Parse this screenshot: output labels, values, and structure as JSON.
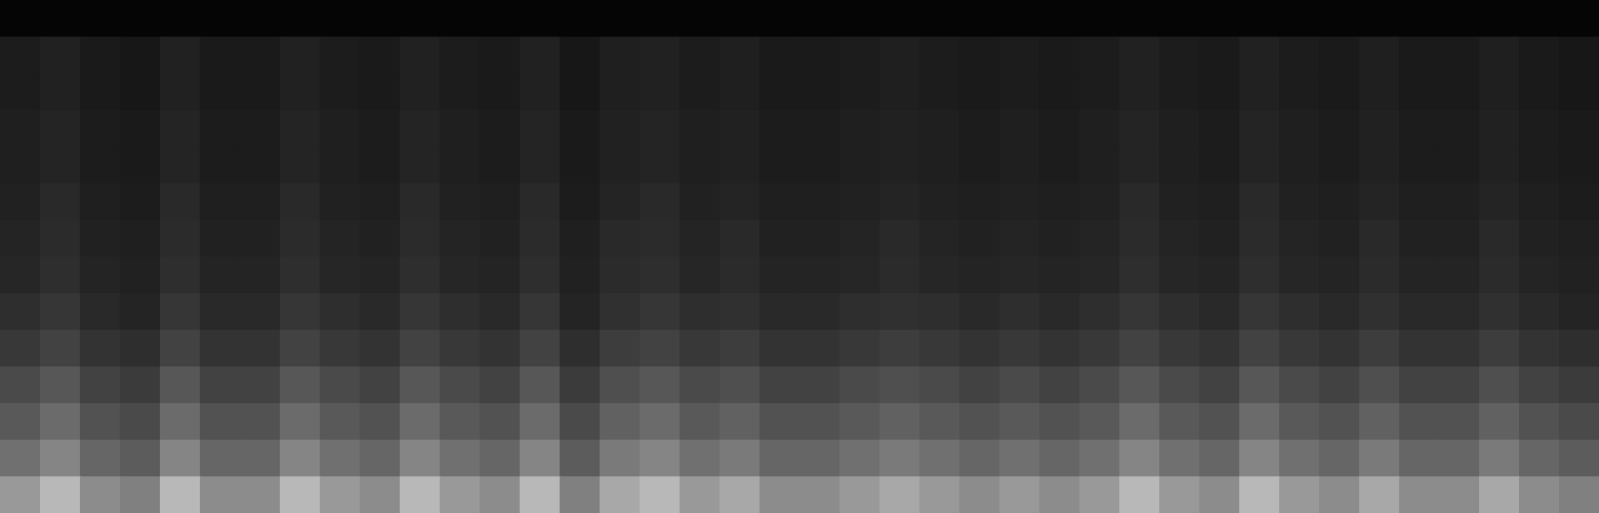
{
  "chart_data": {
    "type": "heatmap",
    "xlim": [
      0,
      40
    ],
    "ylim": [
      0,
      14
    ],
    "zlim": [
      0,
      1
    ],
    "tick_labels": false,
    "cells": [
      [
        0.02,
        0.02,
        0.02,
        0.02,
        0.02,
        0.02,
        0.02,
        0.02,
        0.02,
        0.02,
        0.02,
        0.02,
        0.02,
        0.02,
        0.02,
        0.02,
        0.02,
        0.02,
        0.02,
        0.02,
        0.02,
        0.02,
        0.02,
        0.02,
        0.02,
        0.02,
        0.02,
        0.02,
        0.02,
        0.02,
        0.02,
        0.02,
        0.02,
        0.02,
        0.02,
        0.02,
        0.02,
        0.02,
        0.02,
        0.02
      ],
      [
        0.11,
        0.13,
        0.1,
        0.09,
        0.13,
        0.1,
        0.1,
        0.13,
        0.11,
        0.1,
        0.13,
        0.11,
        0.1,
        0.13,
        0.09,
        0.12,
        0.13,
        0.11,
        0.12,
        0.1,
        0.1,
        0.11,
        0.12,
        0.11,
        0.1,
        0.11,
        0.1,
        0.11,
        0.13,
        0.11,
        0.1,
        0.13,
        0.11,
        0.1,
        0.12,
        0.1,
        0.1,
        0.12,
        0.1,
        0.09
      ],
      [
        0.11,
        0.13,
        0.1,
        0.09,
        0.13,
        0.1,
        0.1,
        0.13,
        0.11,
        0.1,
        0.13,
        0.11,
        0.1,
        0.13,
        0.09,
        0.12,
        0.13,
        0.11,
        0.12,
        0.1,
        0.1,
        0.11,
        0.12,
        0.11,
        0.1,
        0.11,
        0.1,
        0.11,
        0.13,
        0.11,
        0.1,
        0.13,
        0.11,
        0.1,
        0.12,
        0.1,
        0.1,
        0.12,
        0.1,
        0.09
      ],
      [
        0.12,
        0.14,
        0.11,
        0.1,
        0.14,
        0.11,
        0.11,
        0.14,
        0.12,
        0.11,
        0.14,
        0.12,
        0.11,
        0.14,
        0.1,
        0.13,
        0.14,
        0.12,
        0.13,
        0.11,
        0.11,
        0.12,
        0.13,
        0.12,
        0.11,
        0.12,
        0.11,
        0.12,
        0.14,
        0.12,
        0.11,
        0.14,
        0.12,
        0.11,
        0.13,
        0.11,
        0.11,
        0.13,
        0.11,
        0.1
      ],
      [
        0.12,
        0.14,
        0.11,
        0.1,
        0.14,
        0.11,
        0.11,
        0.14,
        0.12,
        0.11,
        0.14,
        0.12,
        0.11,
        0.14,
        0.1,
        0.13,
        0.14,
        0.12,
        0.13,
        0.11,
        0.11,
        0.12,
        0.13,
        0.12,
        0.11,
        0.12,
        0.11,
        0.12,
        0.14,
        0.12,
        0.11,
        0.14,
        0.12,
        0.11,
        0.13,
        0.11,
        0.11,
        0.13,
        0.11,
        0.1
      ],
      [
        0.13,
        0.16,
        0.12,
        0.11,
        0.16,
        0.12,
        0.12,
        0.16,
        0.13,
        0.12,
        0.16,
        0.13,
        0.12,
        0.16,
        0.11,
        0.14,
        0.16,
        0.13,
        0.14,
        0.12,
        0.12,
        0.13,
        0.14,
        0.13,
        0.12,
        0.13,
        0.12,
        0.13,
        0.16,
        0.13,
        0.12,
        0.16,
        0.13,
        0.12,
        0.14,
        0.12,
        0.12,
        0.14,
        0.12,
        0.11
      ],
      [
        0.14,
        0.17,
        0.13,
        0.12,
        0.17,
        0.13,
        0.13,
        0.17,
        0.14,
        0.13,
        0.17,
        0.14,
        0.13,
        0.17,
        0.12,
        0.16,
        0.17,
        0.14,
        0.16,
        0.13,
        0.13,
        0.14,
        0.16,
        0.14,
        0.13,
        0.14,
        0.13,
        0.14,
        0.17,
        0.14,
        0.13,
        0.17,
        0.14,
        0.13,
        0.16,
        0.13,
        0.13,
        0.16,
        0.13,
        0.12
      ],
      [
        0.15,
        0.18,
        0.14,
        0.13,
        0.18,
        0.14,
        0.14,
        0.18,
        0.15,
        0.14,
        0.18,
        0.15,
        0.14,
        0.18,
        0.13,
        0.17,
        0.18,
        0.15,
        0.17,
        0.14,
        0.14,
        0.15,
        0.17,
        0.15,
        0.14,
        0.15,
        0.14,
        0.15,
        0.18,
        0.15,
        0.14,
        0.18,
        0.15,
        0.14,
        0.17,
        0.14,
        0.14,
        0.17,
        0.14,
        0.13
      ],
      [
        0.18,
        0.21,
        0.16,
        0.14,
        0.21,
        0.16,
        0.16,
        0.21,
        0.18,
        0.16,
        0.21,
        0.18,
        0.16,
        0.21,
        0.14,
        0.19,
        0.21,
        0.18,
        0.19,
        0.16,
        0.16,
        0.18,
        0.19,
        0.18,
        0.16,
        0.18,
        0.16,
        0.18,
        0.21,
        0.18,
        0.16,
        0.21,
        0.18,
        0.16,
        0.19,
        0.16,
        0.16,
        0.19,
        0.16,
        0.14
      ],
      [
        0.22,
        0.26,
        0.2,
        0.18,
        0.26,
        0.2,
        0.2,
        0.26,
        0.22,
        0.2,
        0.26,
        0.22,
        0.2,
        0.26,
        0.18,
        0.24,
        0.26,
        0.22,
        0.24,
        0.2,
        0.2,
        0.22,
        0.24,
        0.22,
        0.2,
        0.22,
        0.2,
        0.22,
        0.26,
        0.22,
        0.2,
        0.26,
        0.22,
        0.2,
        0.24,
        0.2,
        0.2,
        0.24,
        0.2,
        0.18
      ],
      [
        0.29,
        0.34,
        0.26,
        0.23,
        0.34,
        0.26,
        0.26,
        0.34,
        0.29,
        0.26,
        0.34,
        0.29,
        0.26,
        0.34,
        0.23,
        0.31,
        0.34,
        0.29,
        0.31,
        0.26,
        0.26,
        0.29,
        0.31,
        0.29,
        0.26,
        0.29,
        0.26,
        0.29,
        0.34,
        0.29,
        0.26,
        0.34,
        0.29,
        0.26,
        0.31,
        0.26,
        0.26,
        0.31,
        0.26,
        0.23
      ],
      [
        0.35,
        0.42,
        0.32,
        0.29,
        0.42,
        0.32,
        0.32,
        0.42,
        0.35,
        0.32,
        0.42,
        0.35,
        0.32,
        0.42,
        0.29,
        0.38,
        0.42,
        0.35,
        0.38,
        0.32,
        0.32,
        0.35,
        0.38,
        0.35,
        0.32,
        0.35,
        0.32,
        0.35,
        0.42,
        0.35,
        0.32,
        0.42,
        0.35,
        0.32,
        0.38,
        0.32,
        0.32,
        0.38,
        0.32,
        0.29
      ],
      [
        0.44,
        0.52,
        0.4,
        0.36,
        0.52,
        0.4,
        0.4,
        0.52,
        0.44,
        0.4,
        0.52,
        0.44,
        0.4,
        0.52,
        0.36,
        0.48,
        0.52,
        0.44,
        0.48,
        0.4,
        0.4,
        0.44,
        0.48,
        0.44,
        0.4,
        0.44,
        0.4,
        0.44,
        0.52,
        0.44,
        0.4,
        0.52,
        0.44,
        0.4,
        0.48,
        0.4,
        0.4,
        0.48,
        0.4,
        0.36
      ],
      [
        0.6,
        0.72,
        0.55,
        0.5,
        0.72,
        0.55,
        0.55,
        0.72,
        0.6,
        0.55,
        0.72,
        0.6,
        0.55,
        0.72,
        0.5,
        0.66,
        0.72,
        0.6,
        0.66,
        0.55,
        0.55,
        0.6,
        0.66,
        0.6,
        0.55,
        0.6,
        0.55,
        0.6,
        0.72,
        0.6,
        0.55,
        0.72,
        0.6,
        0.55,
        0.66,
        0.55,
        0.55,
        0.66,
        0.55,
        0.5
      ]
    ]
  }
}
